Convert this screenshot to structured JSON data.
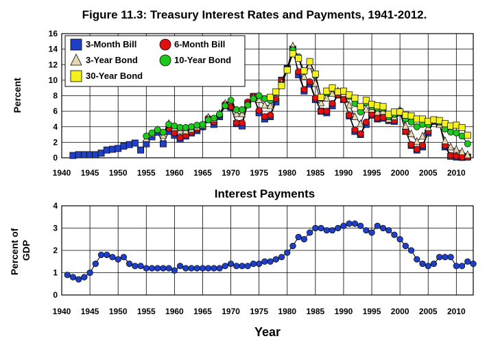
{
  "title": "Figure 11.3: Treasury Interest Rates and Payments, 1941-2012.",
  "colors": {
    "bill3": "#1f3fc4",
    "bill6": "#e01010",
    "bond3": "#e8d6b0",
    "bond10": "#1ec81e",
    "bond30": "#f5f020",
    "payments": "#1f3fc4"
  },
  "chart_data": [
    {
      "type": "line",
      "title": "Figure 11.3: Treasury Interest Rates and Payments, 1941-2012.",
      "xlabel": "",
      "ylabel": "Percent",
      "xlim": [
        1940,
        2013
      ],
      "ylim": [
        0,
        16
      ],
      "x_ticks": [
        "1940",
        "1945",
        "1950",
        "1955",
        "1960",
        "1965",
        "1970",
        "1975",
        "1980",
        "1985",
        "1990",
        "1995",
        "2000",
        "2005",
        "2010"
      ],
      "y_ticks": [
        "0",
        "2",
        "4",
        "6",
        "8",
        "10",
        "12",
        "14",
        "16"
      ],
      "grid": true,
      "legend": "top-left",
      "series": [
        {
          "name": "3-Month Bill",
          "marker": "square",
          "color": "#1f3fc4",
          "x": [
            1942,
            1943,
            1944,
            1945,
            1946,
            1947,
            1948,
            1949,
            1950,
            1951,
            1952,
            1953,
            1954,
            1955,
            1956,
            1957,
            1958,
            1959,
            1960,
            1961,
            1962,
            1963,
            1964,
            1965,
            1966,
            1967,
            1968,
            1969,
            1970,
            1971,
            1972,
            1973,
            1974,
            1975,
            1976,
            1977,
            1978,
            1979,
            1980,
            1981,
            1982,
            1983,
            1984,
            1985,
            1986,
            1987,
            1988,
            1989,
            1990,
            1991,
            1992,
            1993,
            1994,
            1995,
            1996,
            1997,
            1998,
            1999,
            2000,
            2001,
            2002,
            2003,
            2004,
            2005,
            2006,
            2007,
            2008,
            2009,
            2010,
            2011,
            2012
          ],
          "y": [
            0.3,
            0.4,
            0.4,
            0.4,
            0.4,
            0.6,
            1.0,
            1.1,
            1.2,
            1.5,
            1.7,
            1.9,
            1.0,
            1.8,
            2.7,
            3.3,
            1.8,
            3.4,
            2.9,
            2.4,
            2.8,
            3.2,
            3.5,
            4.0,
            4.9,
            4.3,
            5.3,
            6.7,
            6.5,
            4.4,
            4.1,
            7.0,
            7.9,
            5.8,
            5.0,
            5.3,
            7.2,
            10.0,
            11.5,
            14.0,
            10.7,
            8.6,
            9.5,
            7.5,
            6.0,
            5.8,
            6.7,
            8.1,
            7.5,
            5.4,
            3.4,
            3.0,
            4.3,
            5.5,
            5.0,
            5.1,
            4.8,
            4.7,
            5.8,
            3.4,
            1.6,
            1.0,
            1.4,
            3.2,
            4.7,
            4.4,
            1.4,
            0.2,
            0.1,
            0.05,
            0.1
          ]
        },
        {
          "name": "6-Month Bill",
          "marker": "circle",
          "color": "#e01010",
          "x": [
            1959,
            1960,
            1961,
            1962,
            1963,
            1964,
            1965,
            1966,
            1967,
            1968,
            1969,
            1970,
            1971,
            1972,
            1973,
            1974,
            1975,
            1976,
            1977,
            1978,
            1979,
            1980,
            1981,
            1982,
            1983,
            1984,
            1985,
            1986,
            1987,
            1988,
            1989,
            1990,
            1991,
            1992,
            1993,
            1994,
            1995,
            1996,
            1997,
            1998,
            1999,
            2000,
            2001,
            2002,
            2003,
            2004,
            2005,
            2006,
            2007,
            2008,
            2009,
            2010,
            2011,
            2012
          ],
          "y": [
            3.8,
            3.2,
            2.6,
            2.9,
            3.3,
            3.7,
            4.1,
            5.1,
            4.6,
            5.5,
            6.9,
            6.6,
            4.5,
            4.5,
            7.2,
            7.9,
            6.1,
            5.3,
            5.5,
            7.6,
            10.0,
            11.4,
            13.8,
            11.1,
            8.8,
            9.8,
            7.7,
            6.0,
            6.0,
            7.0,
            8.1,
            7.5,
            5.5,
            3.6,
            3.1,
            4.6,
            5.6,
            5.1,
            5.2,
            4.9,
            4.8,
            6.0,
            3.4,
            1.7,
            1.1,
            1.6,
            3.4,
            4.8,
            4.4,
            1.6,
            0.3,
            0.2,
            0.1,
            0.1
          ]
        },
        {
          "name": "3-Year Bond",
          "marker": "triangle",
          "color": "#e8d6b0",
          "x": [
            1955,
            1956,
            1957,
            1958,
            1959,
            1960,
            1961,
            1962,
            1963,
            1964,
            1965,
            1966,
            1967,
            1968,
            1969,
            1970,
            1971,
            1972,
            1973,
            1974,
            1975,
            1976,
            1977,
            1978,
            1979,
            1980,
            1981,
            1982,
            1983,
            1984,
            1985,
            1986,
            1987,
            1988,
            1989,
            1990,
            1991,
            1992,
            1993,
            1994,
            1995,
            1996,
            1997,
            1998,
            1999,
            2000,
            2001,
            2002,
            2003,
            2004,
            2005,
            2006,
            2007,
            2008,
            2009,
            2010,
            2011,
            2012
          ],
          "y": [
            2.5,
            3.1,
            3.6,
            2.9,
            4.4,
            3.9,
            3.5,
            3.5,
            3.7,
            4.0,
            4.2,
            5.2,
            5.0,
            5.7,
            7.0,
            7.3,
            5.7,
            5.7,
            6.9,
            7.8,
            7.5,
            6.8,
            6.7,
            8.3,
            9.7,
            11.5,
            14.4,
            12.9,
            10.5,
            11.9,
            9.6,
            7.1,
            7.7,
            8.3,
            8.6,
            8.3,
            6.8,
            5.3,
            4.4,
            6.3,
            6.3,
            5.9,
            6.0,
            5.0,
            5.3,
            6.2,
            4.1,
            3.1,
            2.1,
            2.8,
            3.9,
            4.8,
            4.3,
            2.2,
            1.4,
            1.1,
            0.8,
            0.4
          ]
        },
        {
          "name": "10-Year Bond",
          "marker": "circle",
          "color": "#1ec81e",
          "x": [
            1955,
            1956,
            1957,
            1958,
            1959,
            1960,
            1961,
            1962,
            1963,
            1964,
            1965,
            1966,
            1967,
            1968,
            1969,
            1970,
            1971,
            1972,
            1973,
            1974,
            1975,
            1976,
            1977,
            1978,
            1979,
            1980,
            1981,
            1982,
            1983,
            1984,
            1985,
            1986,
            1987,
            1988,
            1989,
            1990,
            1991,
            1992,
            1993,
            1994,
            1995,
            1996,
            1997,
            1998,
            1999,
            2000,
            2001,
            2002,
            2003,
            2004,
            2005,
            2006,
            2007,
            2008,
            2009,
            2010,
            2011,
            2012
          ],
          "y": [
            2.8,
            3.2,
            3.6,
            3.3,
            4.3,
            4.1,
            3.9,
            3.9,
            4.0,
            4.2,
            4.3,
            4.9,
            5.1,
            5.6,
            6.7,
            7.4,
            6.2,
            6.2,
            6.8,
            7.6,
            8.0,
            7.6,
            7.4,
            8.4,
            9.4,
            11.4,
            13.9,
            13.0,
            11.1,
            12.4,
            10.6,
            7.7,
            8.4,
            8.9,
            8.5,
            8.6,
            7.9,
            7.0,
            5.9,
            7.1,
            6.6,
            6.4,
            6.4,
            5.3,
            5.6,
            6.0,
            5.0,
            4.6,
            4.0,
            4.3,
            4.3,
            4.8,
            4.6,
            3.7,
            3.3,
            3.2,
            2.8,
            1.8
          ]
        },
        {
          "name": "30-Year Bond",
          "marker": "square",
          "color": "#f5f020",
          "x": [
            1977,
            1978,
            1979,
            1980,
            1981,
            1982,
            1983,
            1984,
            1985,
            1986,
            1987,
            1988,
            1989,
            1990,
            1991,
            1992,
            1993,
            1994,
            1995,
            1996,
            1997,
            1998,
            1999,
            2000,
            2001,
            2002,
            2003,
            2004,
            2005,
            2006,
            2007,
            2008,
            2009,
            2010,
            2011,
            2012
          ],
          "y": [
            7.8,
            8.5,
            9.3,
            11.3,
            13.4,
            12.8,
            11.2,
            12.4,
            10.8,
            7.8,
            8.6,
            9.0,
            8.5,
            8.6,
            8.1,
            7.7,
            6.6,
            7.4,
            6.9,
            6.7,
            6.6,
            5.6,
            5.9,
            5.9,
            5.5,
            5.4,
            5.0,
            5.0,
            4.7,
            4.9,
            4.8,
            4.4,
            4.1,
            4.2,
            3.9,
            2.9
          ]
        }
      ]
    },
    {
      "type": "line",
      "title": "Interest Payments",
      "xlabel": "Year",
      "ylabel": "Percent of GDP",
      "xlim": [
        1940,
        2013
      ],
      "ylim": [
        0,
        4
      ],
      "x_ticks": [
        "1940",
        "1945",
        "1950",
        "1955",
        "1960",
        "1965",
        "1970",
        "1975",
        "1980",
        "1985",
        "1990",
        "1995",
        "2000",
        "2005",
        "2010"
      ],
      "y_ticks": [
        "0",
        "1",
        "2",
        "3",
        "4"
      ],
      "grid": true,
      "series": [
        {
          "marker": "circle",
          "color": "#1f3fc4",
          "x": [
            1941,
            1942,
            1943,
            1944,
            1945,
            1946,
            1947,
            1948,
            1949,
            1950,
            1951,
            1952,
            1953,
            1954,
            1955,
            1956,
            1957,
            1958,
            1959,
            1960,
            1961,
            1962,
            1963,
            1964,
            1965,
            1966,
            1967,
            1968,
            1969,
            1970,
            1971,
            1972,
            1973,
            1974,
            1975,
            1976,
            1977,
            1978,
            1979,
            1980,
            1981,
            1982,
            1983,
            1984,
            1985,
            1986,
            1987,
            1988,
            1989,
            1990,
            1991,
            1992,
            1993,
            1994,
            1995,
            1996,
            1997,
            1998,
            1999,
            2000,
            2001,
            2002,
            2003,
            2004,
            2005,
            2006,
            2007,
            2008,
            2009,
            2010,
            2011,
            2012,
            2013
          ],
          "y": [
            0.9,
            0.8,
            0.7,
            0.8,
            1.0,
            1.4,
            1.8,
            1.8,
            1.7,
            1.6,
            1.7,
            1.4,
            1.3,
            1.3,
            1.2,
            1.2,
            1.2,
            1.2,
            1.2,
            1.1,
            1.3,
            1.2,
            1.2,
            1.2,
            1.2,
            1.2,
            1.2,
            1.2,
            1.3,
            1.4,
            1.3,
            1.3,
            1.3,
            1.4,
            1.4,
            1.5,
            1.5,
            1.6,
            1.7,
            1.9,
            2.2,
            2.6,
            2.5,
            2.8,
            3.0,
            3.0,
            2.9,
            2.9,
            3.0,
            3.1,
            3.2,
            3.2,
            3.1,
            2.9,
            2.8,
            3.1,
            3.0,
            2.9,
            2.7,
            2.5,
            2.2,
            2.0,
            1.6,
            1.4,
            1.3,
            1.4,
            1.7,
            1.7,
            1.7,
            1.3,
            1.3,
            1.5,
            1.4
          ]
        }
      ]
    }
  ]
}
